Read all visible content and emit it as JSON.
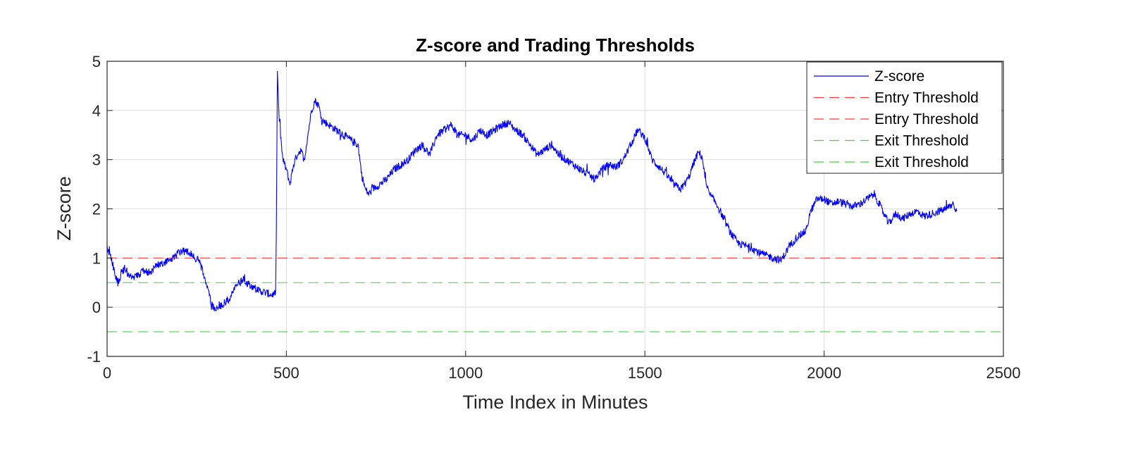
{
  "chart_data": {
    "type": "line",
    "title": "Z-score and Trading Thresholds",
    "xlabel": "Time Index in Minutes",
    "ylabel": "Z-score",
    "xlim": [
      0,
      2500
    ],
    "ylim": [
      -1,
      5
    ],
    "xticks": [
      0,
      500,
      1000,
      1500,
      2000,
      2500
    ],
    "yticks": [
      -1,
      0,
      1,
      2,
      3,
      4,
      5
    ],
    "grid": true,
    "legend_position": "top-right",
    "series": [
      {
        "name": "Z-score",
        "color": "#0000ff",
        "style": "solid",
        "x": [
          0,
          10,
          20,
          30,
          40,
          50,
          60,
          80,
          100,
          120,
          140,
          160,
          180,
          200,
          220,
          240,
          260,
          270,
          280,
          290,
          300,
          320,
          340,
          360,
          380,
          400,
          420,
          440,
          460,
          470,
          472,
          475,
          480,
          490,
          500,
          510,
          520,
          530,
          540,
          550,
          560,
          570,
          580,
          590,
          600,
          620,
          640,
          660,
          680,
          700,
          710,
          720,
          730,
          740,
          760,
          780,
          800,
          820,
          840,
          860,
          880,
          900,
          920,
          940,
          960,
          980,
          1000,
          1020,
          1040,
          1060,
          1080,
          1100,
          1120,
          1140,
          1160,
          1180,
          1200,
          1220,
          1240,
          1260,
          1280,
          1300,
          1320,
          1340,
          1360,
          1380,
          1400,
          1420,
          1440,
          1460,
          1480,
          1500,
          1520,
          1540,
          1560,
          1580,
          1600,
          1620,
          1640,
          1650,
          1660,
          1670,
          1680,
          1700,
          1720,
          1740,
          1760,
          1780,
          1800,
          1820,
          1840,
          1860,
          1880,
          1900,
          1920,
          1940,
          1950,
          1960,
          1980,
          2000,
          2020,
          2040,
          2060,
          2080,
          2100,
          2120,
          2140,
          2160,
          2180,
          2200,
          2220,
          2240,
          2260,
          2280,
          2300,
          2320,
          2340,
          2360,
          2370
        ],
        "y": [
          1.2,
          1.05,
          0.75,
          0.5,
          0.7,
          0.8,
          0.65,
          0.6,
          0.75,
          0.7,
          0.85,
          0.9,
          1.0,
          1.1,
          1.15,
          1.05,
          0.9,
          0.6,
          0.4,
          0.1,
          -0.05,
          0.05,
          0.15,
          0.45,
          0.55,
          0.45,
          0.35,
          0.3,
          0.25,
          0.3,
          1.5,
          4.8,
          3.8,
          3.0,
          2.8,
          2.5,
          2.9,
          3.1,
          3.2,
          3.0,
          3.5,
          4.0,
          4.2,
          4.1,
          3.8,
          3.7,
          3.6,
          3.5,
          3.4,
          3.3,
          2.7,
          2.4,
          2.3,
          2.4,
          2.5,
          2.6,
          2.8,
          2.9,
          3.0,
          3.2,
          3.3,
          3.1,
          3.5,
          3.6,
          3.7,
          3.5,
          3.5,
          3.4,
          3.6,
          3.5,
          3.6,
          3.7,
          3.75,
          3.6,
          3.5,
          3.3,
          3.1,
          3.2,
          3.3,
          3.1,
          3.0,
          2.9,
          2.8,
          2.7,
          2.6,
          2.8,
          2.9,
          2.85,
          3.0,
          3.3,
          3.6,
          3.45,
          3.0,
          2.85,
          2.7,
          2.5,
          2.4,
          2.6,
          3.0,
          3.15,
          3.05,
          2.5,
          2.3,
          2.1,
          1.8,
          1.5,
          1.3,
          1.25,
          1.2,
          1.1,
          1.05,
          1.0,
          0.95,
          1.2,
          1.4,
          1.5,
          1.55,
          1.9,
          2.2,
          2.2,
          2.1,
          2.15,
          2.1,
          2.05,
          2.1,
          2.2,
          2.3,
          2.0,
          1.7,
          1.9,
          1.8,
          1.9,
          1.95,
          1.85,
          1.9,
          1.95,
          2.0,
          2.1,
          1.95
        ]
      },
      {
        "name": "Entry Threshold",
        "color": "#ff3b3b",
        "style": "dashed",
        "x": [
          0,
          2500
        ],
        "y": [
          1,
          1
        ]
      },
      {
        "name": "Entry Threshold",
        "color": "#ff3b3b",
        "style": "dashed",
        "x": [
          0,
          2500
        ],
        "y": [
          -1,
          -1
        ]
      },
      {
        "name": "Exit Threshold",
        "color": "#3ad83a",
        "style": "dashed",
        "x": [
          0,
          2500
        ],
        "y": [
          0.5,
          0.5
        ]
      },
      {
        "name": "Exit Threshold",
        "color": "#3ad83a",
        "style": "dashed",
        "x": [
          0,
          2500
        ],
        "y": [
          -0.5,
          -0.5
        ]
      }
    ]
  }
}
